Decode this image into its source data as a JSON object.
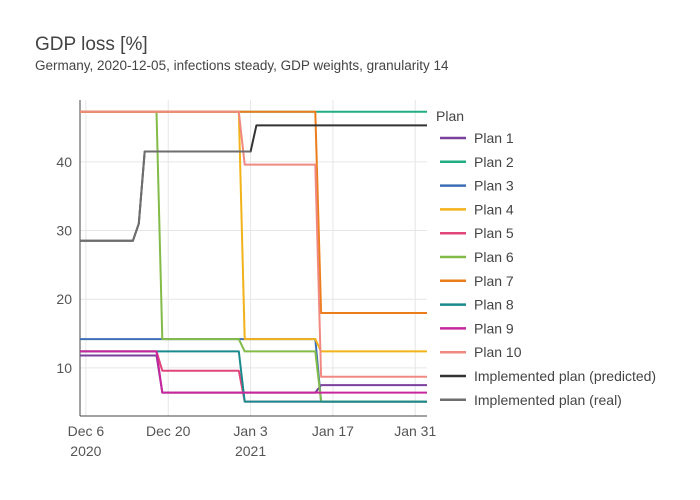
{
  "chart_data": {
    "type": "line",
    "title": "GDP loss [%]",
    "subtitle": "Germany, 2020-12-05, infections steady, GDP weights, granularity 14",
    "legend_title": "Plan",
    "legend_position": "right",
    "grid": true,
    "x_range": [
      "2020-12-05",
      "2021-02-02"
    ],
    "ylim": [
      3,
      49
    ],
    "x_ticks": [
      {
        "date": "2020-12-06",
        "label": "Dec 6",
        "sublabel": "2020"
      },
      {
        "date": "2020-12-20",
        "label": "Dec 20",
        "sublabel": ""
      },
      {
        "date": "2021-01-03",
        "label": "Jan 3",
        "sublabel": "2021"
      },
      {
        "date": "2021-01-17",
        "label": "Jan 17",
        "sublabel": ""
      },
      {
        "date": "2021-01-31",
        "label": "Jan 31",
        "sublabel": ""
      }
    ],
    "y_ticks": [
      10,
      20,
      30,
      40
    ],
    "series": [
      {
        "name": "Plan 1",
        "color": "#7b3f9e",
        "points": [
          [
            "2020-12-05",
            11.8
          ],
          [
            "2020-12-18",
            11.8
          ],
          [
            "2020-12-19",
            6.4
          ],
          [
            "2021-01-14",
            6.4
          ],
          [
            "2021-01-15",
            7.5
          ],
          [
            "2021-02-02",
            7.5
          ]
        ]
      },
      {
        "name": "Plan 2",
        "color": "#1fae83",
        "points": [
          [
            "2020-12-05",
            47.3
          ],
          [
            "2021-02-02",
            47.3
          ]
        ]
      },
      {
        "name": "Plan 3",
        "color": "#3e6fb5",
        "points": [
          [
            "2020-12-05",
            14.2
          ],
          [
            "2021-01-14",
            14.2
          ],
          [
            "2021-01-15",
            5.1
          ],
          [
            "2021-02-02",
            5.1
          ]
        ]
      },
      {
        "name": "Plan 4",
        "color": "#f2b21a",
        "points": [
          [
            "2020-12-05",
            47.3
          ],
          [
            "2021-01-01",
            47.3
          ],
          [
            "2021-01-02",
            14.2
          ],
          [
            "2021-01-14",
            14.2
          ],
          [
            "2021-01-15",
            12.4
          ],
          [
            "2021-02-02",
            12.4
          ]
        ]
      },
      {
        "name": "Plan 5",
        "color": "#e0457b",
        "points": [
          [
            "2020-12-05",
            12.4
          ],
          [
            "2020-12-18",
            12.4
          ],
          [
            "2020-12-19",
            9.6
          ],
          [
            "2021-01-01",
            9.6
          ],
          [
            "2021-01-02",
            5.1
          ],
          [
            "2021-02-02",
            5.1
          ]
        ]
      },
      {
        "name": "Plan 6",
        "color": "#82bb47",
        "points": [
          [
            "2020-12-05",
            47.3
          ],
          [
            "2020-12-18",
            47.3
          ],
          [
            "2020-12-19",
            14.2
          ],
          [
            "2021-01-01",
            14.2
          ],
          [
            "2021-01-02",
            12.4
          ],
          [
            "2021-01-14",
            12.4
          ],
          [
            "2021-01-15",
            5.1
          ],
          [
            "2021-02-02",
            5.1
          ]
        ]
      },
      {
        "name": "Plan 7",
        "color": "#ed7d1a",
        "points": [
          [
            "2020-12-05",
            47.3
          ],
          [
            "2021-01-14",
            47.3
          ],
          [
            "2021-01-15",
            18.0
          ],
          [
            "2021-02-02",
            18.0
          ]
        ]
      },
      {
        "name": "Plan 8",
        "color": "#1a8a8f",
        "points": [
          [
            "2020-12-05",
            12.4
          ],
          [
            "2021-01-01",
            12.4
          ],
          [
            "2021-01-02",
            5.1
          ],
          [
            "2021-02-02",
            5.1
          ]
        ]
      },
      {
        "name": "Plan 9",
        "color": "#c7269c",
        "points": [
          [
            "2020-12-05",
            12.4
          ],
          [
            "2020-12-18",
            12.4
          ],
          [
            "2020-12-19",
            6.4
          ],
          [
            "2021-02-02",
            6.4
          ]
        ]
      },
      {
        "name": "Plan 10",
        "color": "#f08a80",
        "points": [
          [
            "2020-12-05",
            47.3
          ],
          [
            "2021-01-01",
            47.3
          ],
          [
            "2021-01-02",
            39.6
          ],
          [
            "2021-01-14",
            39.6
          ],
          [
            "2021-01-15",
            8.7
          ],
          [
            "2021-02-02",
            8.7
          ]
        ]
      },
      {
        "name": "Implemented plan (predicted)",
        "color": "#333333",
        "points": [
          [
            "2020-12-05",
            28.5
          ],
          [
            "2020-12-14",
            28.5
          ],
          [
            "2020-12-15",
            31.0
          ],
          [
            "2020-12-16",
            41.5
          ],
          [
            "2021-01-02",
            41.5
          ],
          [
            "2021-01-03",
            41.5
          ],
          [
            "2021-01-04",
            45.3
          ],
          [
            "2021-02-02",
            45.3
          ]
        ]
      },
      {
        "name": "Implemented plan (real)",
        "color": "#6e6e6e",
        "points": [
          [
            "2020-12-05",
            28.5
          ],
          [
            "2020-12-14",
            28.5
          ],
          [
            "2020-12-15",
            31.0
          ],
          [
            "2020-12-16",
            41.5
          ],
          [
            "2021-01-03",
            41.5
          ]
        ]
      }
    ]
  }
}
